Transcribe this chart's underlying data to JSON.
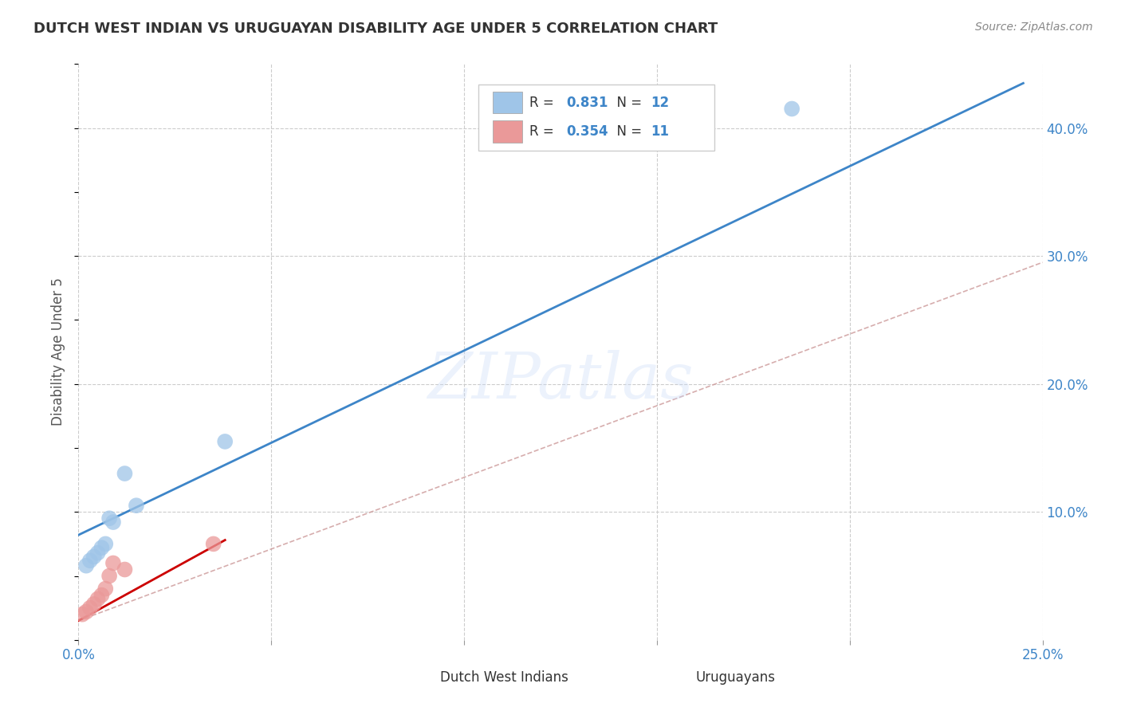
{
  "title": "DUTCH WEST INDIAN VS URUGUAYAN DISABILITY AGE UNDER 5 CORRELATION CHART",
  "source": "Source: ZipAtlas.com",
  "ylabel": "Disability Age Under 5",
  "xlim": [
    0.0,
    0.25
  ],
  "ylim": [
    0.0,
    0.45
  ],
  "xticks": [
    0.0,
    0.05,
    0.1,
    0.15,
    0.2,
    0.25
  ],
  "xtick_labels": [
    "0.0%",
    "",
    "",
    "",
    "",
    "25.0%"
  ],
  "yticks_right": [
    0.1,
    0.2,
    0.3,
    0.4
  ],
  "ytick_labels_right": [
    "10.0%",
    "20.0%",
    "30.0%",
    "40.0%"
  ],
  "blue_scatter_x": [
    0.002,
    0.003,
    0.004,
    0.005,
    0.006,
    0.007,
    0.008,
    0.009,
    0.012,
    0.015,
    0.038,
    0.185
  ],
  "blue_scatter_y": [
    0.058,
    0.062,
    0.065,
    0.068,
    0.072,
    0.075,
    0.095,
    0.092,
    0.13,
    0.105,
    0.155,
    0.415
  ],
  "pink_scatter_x": [
    0.001,
    0.002,
    0.003,
    0.004,
    0.005,
    0.006,
    0.007,
    0.008,
    0.009,
    0.012,
    0.035
  ],
  "pink_scatter_y": [
    0.02,
    0.022,
    0.025,
    0.028,
    0.032,
    0.035,
    0.04,
    0.05,
    0.06,
    0.055,
    0.075
  ],
  "blue_line_x": [
    0.0,
    0.245
  ],
  "blue_line_y": [
    0.082,
    0.435
  ],
  "pink_solid_line_x": [
    0.0,
    0.038
  ],
  "pink_solid_line_y": [
    0.015,
    0.078
  ],
  "pink_dash_line_x": [
    0.0,
    0.25
  ],
  "pink_dash_line_y": [
    0.015,
    0.295
  ],
  "blue_color": "#9fc5e8",
  "blue_line_color": "#3d85c8",
  "pink_color": "#ea9999",
  "pink_solid_color": "#cc0000",
  "pink_dash_color": "#cc9999",
  "legend_blue_R": "0.831",
  "legend_blue_N": "12",
  "legend_pink_R": "0.354",
  "legend_pink_N": "11",
  "legend_text_color": "#3d85c8",
  "title_fontsize": 13,
  "source_fontsize": 10,
  "watermark": "ZIPatlas",
  "background_color": "#ffffff",
  "grid_color": "#cccccc"
}
